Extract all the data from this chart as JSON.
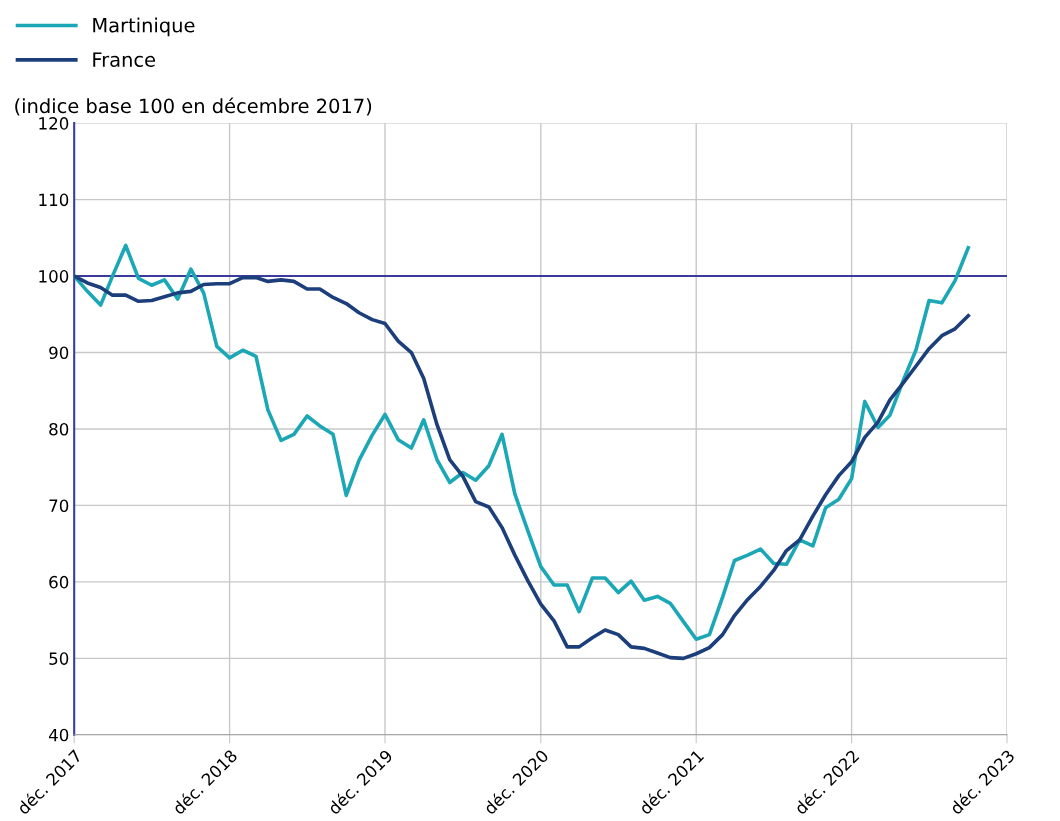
{
  "chart_data": {
    "type": "line",
    "ylabel": "(indice base 100 en décembre 2017)",
    "x": [
      "2017-12",
      "2018-01",
      "2018-02",
      "2018-03",
      "2018-04",
      "2018-05",
      "2018-06",
      "2018-07",
      "2018-08",
      "2018-09",
      "2018-10",
      "2018-11",
      "2018-12",
      "2019-01",
      "2019-02",
      "2019-03",
      "2019-04",
      "2019-05",
      "2019-06",
      "2019-07",
      "2019-08",
      "2019-09",
      "2019-10",
      "2019-11",
      "2019-12",
      "2020-01",
      "2020-02",
      "2020-03",
      "2020-04",
      "2020-05",
      "2020-06",
      "2020-07",
      "2020-08",
      "2020-09",
      "2020-10",
      "2020-11",
      "2020-12",
      "2021-01",
      "2021-02",
      "2021-03",
      "2021-04",
      "2021-05",
      "2021-06",
      "2021-07",
      "2021-08",
      "2021-09",
      "2021-10",
      "2021-11",
      "2021-12",
      "2022-01",
      "2022-02",
      "2022-03",
      "2022-04",
      "2022-05",
      "2022-06",
      "2022-07",
      "2022-08",
      "2022-09",
      "2022-10",
      "2022-11",
      "2022-12",
      "2023-01",
      "2023-02",
      "2023-03",
      "2023-04",
      "2023-05",
      "2023-06",
      "2023-07",
      "2023-08",
      "2023-09"
    ],
    "series": [
      {
        "name": "Martinique",
        "color": "#1ba7b5",
        "values": [
          100,
          98,
          96.2,
          100,
          104,
          99.7,
          98.8,
          99.5,
          97,
          100.9,
          97.8,
          90.8,
          89.3,
          90.3,
          89.5,
          82.5,
          78.5,
          79.3,
          81.7,
          80.4,
          79.3,
          71.3,
          75.9,
          79.2,
          81.9,
          78.6,
          77.5,
          81.2,
          76,
          73,
          74.3,
          73.3,
          75.2,
          79.3,
          71.5,
          66.6,
          62,
          59.6,
          59.6,
          56.1,
          60.5,
          60.5,
          58.6,
          60.1,
          57.6,
          58.1,
          57.2,
          54.8,
          52.5,
          53.1,
          58,
          62.8,
          63.5,
          64.3,
          62.4,
          62.3,
          65.5,
          64.7,
          69.7,
          70.8,
          73.5,
          83.6,
          80.2,
          81.8,
          86.3,
          90.3,
          96.8,
          96.5,
          99.4,
          103.7
        ]
      },
      {
        "name": "France",
        "color": "#1c3f7c",
        "values": [
          100,
          99.1,
          98.5,
          97.5,
          97.5,
          96.7,
          96.8,
          97.3,
          97.8,
          98,
          98.9,
          99,
          99,
          99.8,
          99.8,
          99.3,
          99.5,
          99.3,
          98.3,
          98.3,
          97.2,
          96.4,
          95.2,
          94.3,
          93.8,
          91.5,
          90,
          86.6,
          80.6,
          76,
          73.8,
          70.5,
          69.8,
          67.1,
          63.5,
          60.1,
          57.1,
          54.9,
          51.5,
          51.5,
          52.7,
          53.7,
          53.1,
          51.5,
          51.3,
          50.7,
          50.1,
          50,
          50.6,
          51.4,
          53.1,
          55.6,
          57.7,
          59.4,
          61.5,
          64.1,
          65.5,
          68.6,
          71.4,
          73.9,
          75.7,
          78.9,
          80.9,
          83.8,
          86,
          88.2,
          90.5,
          92.2,
          93.1,
          94.8
        ]
      }
    ],
    "xlim": [
      "2017-12",
      "2023-12"
    ],
    "xticks": [
      {
        "value": "2017-12",
        "label": "déc. 2017"
      },
      {
        "value": "2018-12",
        "label": "déc. 2018"
      },
      {
        "value": "2019-12",
        "label": "déc. 2019"
      },
      {
        "value": "2020-12",
        "label": "déc. 2020"
      },
      {
        "value": "2021-12",
        "label": "déc. 2021"
      },
      {
        "value": "2022-12",
        "label": "déc. 2022"
      },
      {
        "value": "2023-12",
        "label": "déc. 2023"
      }
    ],
    "ylim": [
      40,
      120
    ],
    "yticks": [
      40,
      50,
      60,
      70,
      80,
      90,
      100,
      110,
      120
    ],
    "ref_lines": [
      {
        "axis": "y",
        "value": 100,
        "color": "#3b3b9e"
      }
    ],
    "grid": true,
    "legend": "top left",
    "marker": "none",
    "line_style": "solid"
  }
}
